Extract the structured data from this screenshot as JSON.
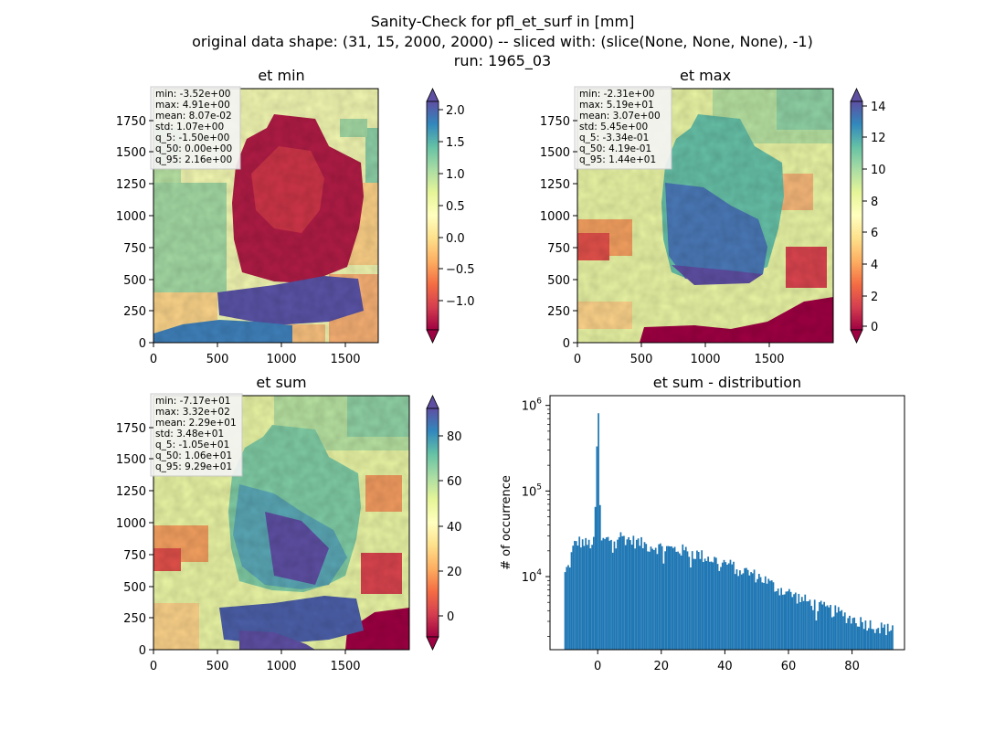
{
  "figure": {
    "title_lines": [
      "Sanity-Check for pfl_et_surf in [mm]",
      "original data shape: (31, 15, 2000, 2000) -- sliced with: (slice(None, None, None), -1)",
      "run: 1965_03"
    ]
  },
  "chart_data": [
    {
      "type": "heatmap",
      "title": "et min",
      "colormap": "Spectral",
      "xlim": [
        0,
        2000
      ],
      "ylim": [
        0,
        2000
      ],
      "xticks": [
        "0",
        "500",
        "1000",
        "1500"
      ],
      "yticks": [
        "0",
        "250",
        "500",
        "750",
        "1000",
        "1250",
        "1500",
        "1750"
      ],
      "colorbar": {
        "range": [
          -1.5,
          2.2
        ],
        "ticks": [
          "−1.0",
          "−0.5",
          "0.0",
          "0.5",
          "1.0",
          "1.5",
          "2.0"
        ],
        "tick_values": [
          -1.0,
          -0.5,
          0.0,
          0.5,
          1.0,
          1.5,
          2.0
        ]
      },
      "stats": [
        "min: -3.52e+00",
        "max: 4.91e+00",
        "mean: 8.07e-02",
        "std: 1.07e+00",
        "q_5: -1.50e+00",
        "q_50: 0.00e+00",
        "q_95: 2.16e+00"
      ]
    },
    {
      "type": "heatmap",
      "title": "et max",
      "colormap": "Spectral",
      "xlim": [
        0,
        2000
      ],
      "ylim": [
        0,
        2000
      ],
      "xticks": [
        "0",
        "500",
        "1000",
        "1500"
      ],
      "yticks": [
        "0",
        "250",
        "500",
        "750",
        "1000",
        "1250",
        "1500",
        "1750"
      ],
      "colorbar": {
        "range": [
          -0.4,
          14.8
        ],
        "ticks": [
          "0",
          "2",
          "4",
          "6",
          "8",
          "10",
          "12",
          "14"
        ],
        "tick_values": [
          0,
          2,
          4,
          6,
          8,
          10,
          12,
          14
        ]
      },
      "stats": [
        "min: -2.31e+00",
        "max: 5.19e+01",
        "mean: 3.07e+00",
        "std: 5.45e+00",
        "q_5: -3.34e-01",
        "q_50: 4.19e-01",
        "q_95: 1.44e+01"
      ]
    },
    {
      "type": "heatmap",
      "title": "et sum",
      "colormap": "Spectral",
      "xlim": [
        0,
        2000
      ],
      "ylim": [
        0,
        2000
      ],
      "xticks": [
        "0",
        "500",
        "1000",
        "1500"
      ],
      "yticks": [
        "0",
        "250",
        "500",
        "750",
        "1000",
        "1250",
        "1500",
        "1750"
      ],
      "colorbar": {
        "range": [
          -11,
          95
        ],
        "ticks": [
          "0",
          "20",
          "40",
          "60",
          "80"
        ],
        "tick_values": [
          0,
          20,
          40,
          60,
          80
        ]
      },
      "stats": [
        "min: -7.17e+01",
        "max: 3.32e+02",
        "mean: 2.29e+01",
        "std: 3.48e+01",
        "q_5: -1.05e+01",
        "q_50: 1.06e+01",
        "q_95: 9.29e+01"
      ]
    },
    {
      "type": "histogram",
      "title": "et sum - distribution",
      "ylabel": "# of occurrence",
      "yscale": "log",
      "xlim": [
        -15,
        96.5
      ],
      "ylim": [
        1400,
        1300000
      ],
      "xticks": [
        "0",
        "20",
        "40",
        "60",
        "80"
      ],
      "xtick_values": [
        0,
        20,
        40,
        60,
        80
      ],
      "ytick_values": [
        10000,
        100000,
        1000000
      ],
      "ytick_base": "10",
      "ytick_exponents": [
        "4",
        "5",
        "6"
      ],
      "bar_color": "#1f77b4",
      "anchors": [
        [
          -10.5,
          6000
        ],
        [
          -10.2,
          12000
        ],
        [
          -9,
          13000
        ],
        [
          -8,
          20000
        ],
        [
          -7,
          25000
        ],
        [
          -6,
          26000
        ],
        [
          -3,
          24000
        ],
        [
          -1,
          25000
        ],
        [
          0,
          810000
        ],
        [
          1,
          26000
        ],
        [
          3,
          27000
        ],
        [
          5,
          28000
        ],
        [
          7,
          30000
        ],
        [
          10,
          27000
        ],
        [
          13,
          25000
        ],
        [
          16,
          23000
        ],
        [
          20,
          22000
        ],
        [
          24,
          21000
        ],
        [
          28,
          20000
        ],
        [
          32,
          18000
        ],
        [
          36,
          16000
        ],
        [
          40,
          14500
        ],
        [
          44,
          12500
        ],
        [
          48,
          11000
        ],
        [
          52,
          9500
        ],
        [
          56,
          7500
        ],
        [
          60,
          6500
        ],
        [
          64,
          5500
        ],
        [
          68,
          4800
        ],
        [
          72,
          4200
        ],
        [
          76,
          3800
        ],
        [
          80,
          3200
        ],
        [
          84,
          2900
        ],
        [
          88,
          2600
        ],
        [
          92,
          2400
        ],
        [
          93,
          3000
        ]
      ]
    }
  ]
}
